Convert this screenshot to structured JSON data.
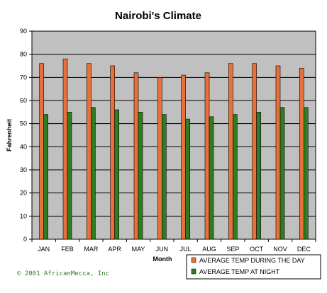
{
  "chart_data": {
    "type": "bar",
    "title": "Nairobi's Climate",
    "xlabel": "Month",
    "ylabel": "Fahrenheit",
    "ylim": [
      0,
      90
    ],
    "yticks": [
      0,
      10,
      20,
      30,
      40,
      50,
      60,
      70,
      80,
      90
    ],
    "categories": [
      "JAN",
      "FEB",
      "MAR",
      "APR",
      "MAY",
      "JUN",
      "JUL",
      "AUG",
      "SEP",
      "OCT",
      "NOV",
      "DEC"
    ],
    "grid": true,
    "legend_position": "bottom-right",
    "series": [
      {
        "name": "AVERAGE TEMP DURING THE DAY",
        "color": "#e8703a",
        "values": [
          76,
          78,
          76,
          75,
          72,
          70,
          71,
          72,
          76,
          76,
          75,
          74
        ]
      },
      {
        "name": "AVERAGE TEMP AT NIGHT",
        "color": "#2f7d22",
        "values": [
          54,
          55,
          57,
          56,
          55,
          54,
          52,
          53,
          54,
          55,
          57,
          57
        ]
      }
    ],
    "plot_background": "#c0c0c0"
  },
  "footer": {
    "copyright": "©  2001 AfricanMecca, Inc"
  }
}
